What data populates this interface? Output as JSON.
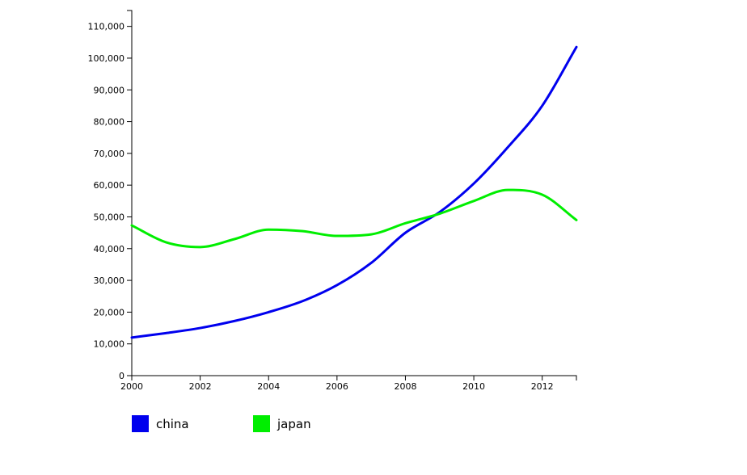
{
  "chart_data": {
    "type": "line",
    "x": [
      2000,
      2001,
      2002,
      2003,
      2004,
      2005,
      2006,
      2007,
      2008,
      2009,
      2010,
      2011,
      2012,
      2013
    ],
    "series": [
      {
        "name": "china",
        "color": "#0000ee",
        "values": [
          12000,
          13400,
          15000,
          17200,
          20000,
          23500,
          28500,
          35500,
          45000,
          51500,
          60500,
          72000,
          85000,
          103500
        ]
      },
      {
        "name": "japan",
        "color": "#00ee00",
        "values": [
          47300,
          42000,
          40500,
          43000,
          46000,
          45500,
          44000,
          44500,
          48000,
          51000,
          55000,
          58500,
          57000,
          49000
        ]
      }
    ],
    "xlim": [
      2000,
      2013
    ],
    "ylim": [
      0,
      115000
    ],
    "xticks": [
      2000,
      2002,
      2004,
      2006,
      2008,
      2010,
      2012
    ],
    "xtick_labels": [
      "2000",
      "2002",
      "2004",
      "2006",
      "2008",
      "2010",
      "2012"
    ],
    "yticks": [
      0,
      10000,
      20000,
      30000,
      40000,
      50000,
      60000,
      70000,
      80000,
      90000,
      100000,
      110000
    ],
    "ytick_labels": [
      "0",
      "10,000",
      "20,000",
      "30,000",
      "40,000",
      "50,000",
      "60,000",
      "70,000",
      "80,000",
      "90,000",
      "100,000",
      "110,000"
    ],
    "title": "",
    "xlabel": "",
    "ylabel": "",
    "grid": false,
    "legend_position": "bottom-left"
  }
}
